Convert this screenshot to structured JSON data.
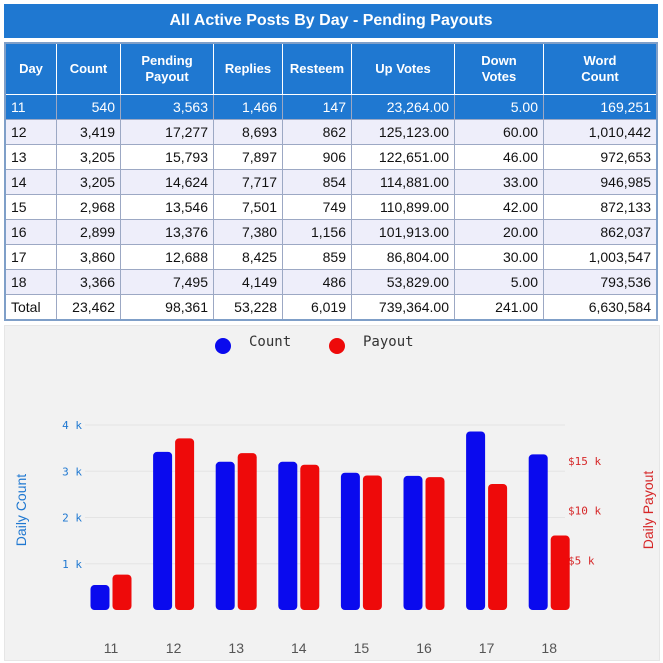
{
  "header": {
    "title": "All Active Posts By Day - Pending Payouts"
  },
  "table": {
    "columns": [
      "Day",
      "Count",
      "Pending\nPayout",
      "Replies",
      "Resteem",
      "Up Votes",
      "Down\nVotes",
      "Word\nCount"
    ],
    "rows": [
      [
        "11",
        "540",
        "3,563",
        "1,466",
        "147",
        "23,264.00",
        "5.00",
        "169,251"
      ],
      [
        "12",
        "3,419",
        "17,277",
        "8,693",
        "862",
        "125,123.00",
        "60.00",
        "1,010,442"
      ],
      [
        "13",
        "3,205",
        "15,793",
        "7,897",
        "906",
        "122,651.00",
        "46.00",
        "972,653"
      ],
      [
        "14",
        "3,205",
        "14,624",
        "7,717",
        "854",
        "114,881.00",
        "33.00",
        "946,985"
      ],
      [
        "15",
        "2,968",
        "13,546",
        "7,501",
        "749",
        "110,899.00",
        "42.00",
        "872,133"
      ],
      [
        "16",
        "2,899",
        "13,376",
        "7,380",
        "1,156",
        "101,913.00",
        "20.00",
        "862,037"
      ],
      [
        "17",
        "3,860",
        "12,688",
        "8,425",
        "859",
        "86,804.00",
        "30.00",
        "1,003,547"
      ],
      [
        "18",
        "3,366",
        "7,495",
        "4,149",
        "486",
        "53,829.00",
        "5.00",
        "793,536"
      ]
    ],
    "total": [
      "Total",
      "23,462",
      "98,361",
      "53,228",
      "6,019",
      "739,364.00",
      "241.00",
      "6,630,584"
    ],
    "selected_row": 0
  },
  "chart_data": {
    "type": "bar",
    "categories": [
      "11",
      "12",
      "13",
      "14",
      "15",
      "16",
      "17",
      "18"
    ],
    "series": [
      {
        "name": "Count",
        "axis": "left",
        "color": "#0a0aee",
        "values": [
          540,
          3419,
          3205,
          3205,
          2968,
          2899,
          3860,
          3366
        ]
      },
      {
        "name": "Payout",
        "axis": "right",
        "color": "#ee0a0a",
        "values": [
          3563,
          17277,
          15793,
          14624,
          13546,
          13376,
          12688,
          7495
        ]
      }
    ],
    "left_axis": {
      "label": "Daily Count",
      "ticks": [
        "1 k",
        "2 k",
        "3 k",
        "4 k"
      ],
      "tick_values": [
        1000,
        2000,
        3000,
        4000
      ],
      "range": [
        0,
        4000
      ],
      "color": "#1f78d1"
    },
    "right_axis": {
      "label": "Daily Payout",
      "ticks": [
        "$5 k",
        "$10 k",
        "$15 k"
      ],
      "tick_values": [
        5000,
        10000,
        15000
      ],
      "range": [
        0,
        15000
      ],
      "color": "#d62728"
    },
    "legend_position": "top-center",
    "grid": true
  }
}
